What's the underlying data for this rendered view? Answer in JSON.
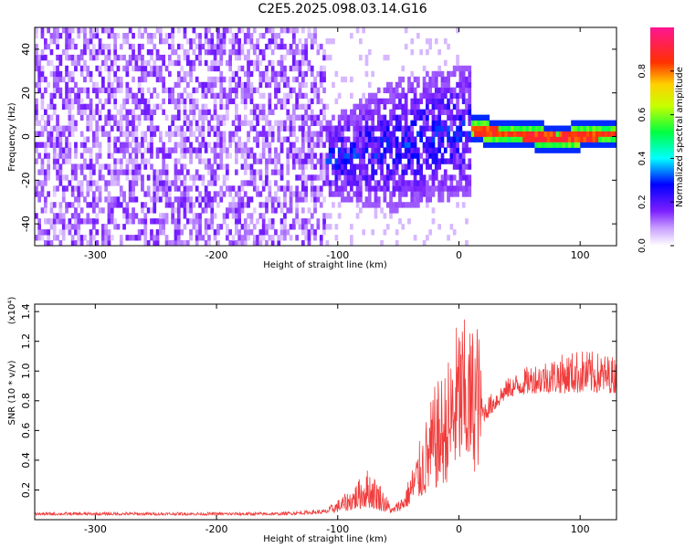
{
  "title": "C2E5.2025.098.03.14.G16",
  "chart_data": [
    {
      "type": "heatmap",
      "xlabel": "Height of straight line (km)",
      "ylabel": "Frequency (Hz)",
      "xlim": [
        -350,
        130
      ],
      "ylim": [
        -50,
        50
      ],
      "xticks": [
        -300,
        -200,
        -100,
        0,
        100
      ],
      "yticks": [
        -40,
        -20,
        0,
        20,
        40
      ],
      "colorbar": {
        "label": "Normalized spectral amplitude",
        "range": [
          0,
          1
        ],
        "ticks": [
          0.0,
          0.2,
          0.4,
          0.6,
          0.8
        ],
        "colormap": [
          "#ffffff",
          "#8a2be2",
          "#0000ff",
          "#00ffff",
          "#00ff00",
          "#ffff00",
          "#ff8c00",
          "#ff0000",
          "#ff1493"
        ]
      },
      "description_points": {
        "noise_region_x": [
          -350,
          -110
        ],
        "transition_region_x": [
          -135,
          10
        ],
        "signal_line_x": [
          10,
          130
        ],
        "signal_line_freq": [
          [
            10,
            2
          ],
          [
            40,
            0
          ],
          [
            60,
            -1
          ],
          [
            80,
            -2
          ],
          [
            100,
            -1
          ],
          [
            130,
            0
          ]
        ]
      }
    },
    {
      "type": "line",
      "xlabel": "Height of straight line (km)",
      "ylabel": "SNR (10 * v/v)",
      "yscale_label": "(x10⁴)",
      "xlim": [
        -350,
        130
      ],
      "ylim": [
        0,
        1.45
      ],
      "xticks": [
        -300,
        -200,
        -100,
        0,
        100
      ],
      "yticks": [
        0.2,
        0.4,
        0.6,
        0.8,
        1.0,
        1.2,
        1.4
      ],
      "color": "#f03c3c",
      "envelope": [
        [
          -350,
          0.03,
          0.05
        ],
        [
          -150,
          0.03,
          0.05
        ],
        [
          -110,
          0.04,
          0.07
        ],
        [
          -90,
          0.06,
          0.2
        ],
        [
          -75,
          0.08,
          0.35
        ],
        [
          -65,
          0.06,
          0.25
        ],
        [
          -55,
          0.04,
          0.08
        ],
        [
          -45,
          0.07,
          0.18
        ],
        [
          -30,
          0.15,
          0.6
        ],
        [
          -20,
          0.2,
          0.9
        ],
        [
          -10,
          0.25,
          1.05
        ],
        [
          0,
          0.35,
          1.4
        ],
        [
          10,
          0.35,
          1.3
        ],
        [
          15,
          0.3,
          1.45
        ],
        [
          20,
          0.65,
          0.8
        ],
        [
          40,
          0.82,
          0.95
        ],
        [
          60,
          0.85,
          1.05
        ],
        [
          80,
          0.85,
          1.1
        ],
        [
          100,
          0.85,
          1.15
        ],
        [
          130,
          0.85,
          1.1
        ]
      ]
    }
  ]
}
